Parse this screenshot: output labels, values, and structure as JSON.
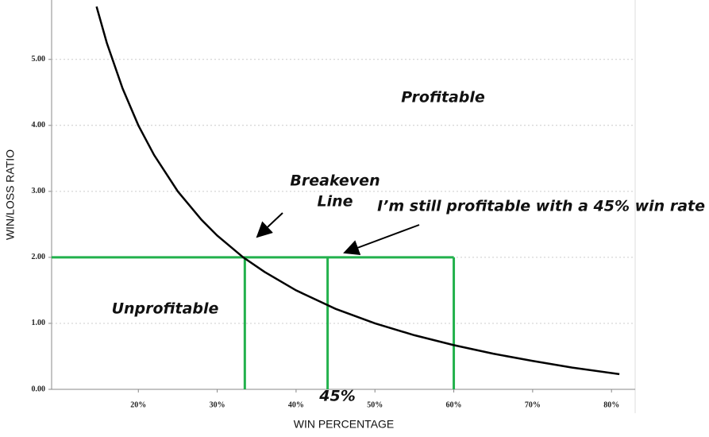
{
  "chart_data": {
    "type": "line",
    "xlabel": "WIN PERCENTAGE",
    "ylabel": "WIN/LOSS RATIO",
    "x": [
      14.7,
      16,
      18,
      20,
      22,
      25,
      28,
      30,
      33.3,
      36,
      40,
      45,
      50,
      55,
      60,
      65,
      70,
      75,
      81
    ],
    "values": [
      5.8,
      5.25,
      4.56,
      4.0,
      3.55,
      3.0,
      2.57,
      2.33,
      2.0,
      1.78,
      1.5,
      1.22,
      1.0,
      0.82,
      0.67,
      0.54,
      0.43,
      0.33,
      0.23
    ],
    "color": "#000000",
    "xlim": [
      9,
      83
    ],
    "ylim": [
      0,
      5.9
    ],
    "xticks": [
      {
        "value": 20,
        "label": "20%"
      },
      {
        "value": 30,
        "label": "30%"
      },
      {
        "value": 40,
        "label": "40%"
      },
      {
        "value": 50,
        "label": "50%"
      },
      {
        "value": 60,
        "label": "60%"
      },
      {
        "value": 70,
        "label": "70%"
      },
      {
        "value": 80,
        "label": "80%"
      }
    ],
    "yticks": [
      {
        "value": 0,
        "label": "0.00"
      },
      {
        "value": 1,
        "label": "1.00"
      },
      {
        "value": 2,
        "label": "2.00"
      },
      {
        "value": 3,
        "label": "3.00"
      },
      {
        "value": 4,
        "label": "4.00"
      },
      {
        "value": 5,
        "label": "5.00"
      }
    ],
    "grid": true,
    "guides": {
      "color": "#22b14c",
      "y": 2,
      "x": [
        33.5,
        44,
        60
      ]
    },
    "annotations": {
      "profitable": "Profitable",
      "unprofitable": "Unprofitable",
      "breakeven": [
        "Breakeven",
        "Line"
      ],
      "callout": "I’m still profitable with a 45% win rate",
      "marker": "45%"
    }
  }
}
